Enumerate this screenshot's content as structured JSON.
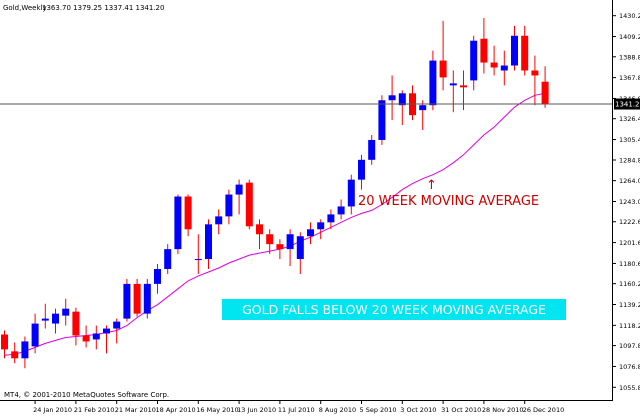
{
  "header": {
    "symbol": "Gold,Weekly",
    "ohlc": "1363.70 1379.25 1337.41 1341.20"
  },
  "footer": {
    "copyright": "MT4, © 2001-2010 MetaQuotes Software Corp."
  },
  "current_price": {
    "value": 1341.2,
    "label": "1341.20"
  },
  "annotations": {
    "ma_label": "20 WEEK MOVING AVERAGE",
    "arrow_glyph": "↑",
    "banner": "GOLD FALLS BELOW 20 WEEK MOVING AVERAGE"
  },
  "colors": {
    "bull": "#0000ff",
    "bear": "#ff0000",
    "wick": "#ff0000",
    "ma": "#e000e0",
    "banner_bg": "#00e5f0",
    "banner_text": "#ffffff",
    "annotation_text": "#cc0000",
    "axis": "#000000",
    "price_line": "#555555",
    "price_tag_bg": "#000000",
    "price_tag_text": "#ffffff"
  },
  "chart_data": {
    "type": "candlestick",
    "title": "Gold,Weekly",
    "ylim": [
      1044,
      1444
    ],
    "y_ticks": [
      1055.8,
      1076.8,
      1097.8,
      1118.2,
      1139.2,
      1160.2,
      1180.6,
      1201.6,
      1222.6,
      1243.0,
      1264.0,
      1284.8,
      1305.4,
      1326.4,
      1346.8,
      1367.8,
      1388.8,
      1409.2,
      1430.2
    ],
    "y_tick_labels": [
      "1055.80",
      "1076.80",
      "1097.80",
      "1118.20",
      "1139.20",
      "1160.20",
      "1180.60",
      "1201.60",
      "1222.60",
      "1243.00",
      "1264.00",
      "1284.80",
      "1305.40",
      "1326.40",
      "1346.80",
      "1367.80",
      "1388.80",
      "1409.20",
      "1430.20"
    ],
    "x_tick_labels": [
      "24 Jan 2010",
      "21 Feb 2010",
      "21 Mar 2010",
      "18 Apr 2010",
      "16 May 2010",
      "13 Jun 2010",
      "11 Jul 2010",
      "8 Aug 2010",
      "5 Sep 2010",
      "3 Oct 2010",
      "31 Oct 2010",
      "28 Nov 2010",
      "26 Dec 2010"
    ],
    "x_tick_bar_index": [
      3,
      7,
      11,
      15,
      19,
      23,
      27,
      31,
      35,
      39,
      43,
      47,
      51
    ],
    "candles": [
      {
        "o": 1109,
        "h": 1113,
        "l": 1085,
        "c": 1094
      },
      {
        "o": 1092,
        "h": 1101,
        "l": 1080,
        "c": 1085
      },
      {
        "o": 1085,
        "h": 1107,
        "l": 1075,
        "c": 1102
      },
      {
        "o": 1097,
        "h": 1130,
        "l": 1090,
        "c": 1120
      },
      {
        "o": 1123,
        "h": 1140,
        "l": 1115,
        "c": 1125
      },
      {
        "o": 1120,
        "h": 1135,
        "l": 1110,
        "c": 1130
      },
      {
        "o": 1128,
        "h": 1145,
        "l": 1118,
        "c": 1135
      },
      {
        "o": 1132,
        "h": 1136,
        "l": 1098,
        "c": 1108
      },
      {
        "o": 1108,
        "h": 1118,
        "l": 1096,
        "c": 1102
      },
      {
        "o": 1104,
        "h": 1118,
        "l": 1094,
        "c": 1110
      },
      {
        "o": 1110,
        "h": 1118,
        "l": 1090,
        "c": 1115
      },
      {
        "o": 1115,
        "h": 1125,
        "l": 1100,
        "c": 1122
      },
      {
        "o": 1125,
        "h": 1165,
        "l": 1122,
        "c": 1160
      },
      {
        "o": 1160,
        "h": 1165,
        "l": 1127,
        "c": 1130
      },
      {
        "o": 1130,
        "h": 1165,
        "l": 1125,
        "c": 1160
      },
      {
        "o": 1160,
        "h": 1180,
        "l": 1150,
        "c": 1175
      },
      {
        "o": 1175,
        "h": 1200,
        "l": 1170,
        "c": 1195
      },
      {
        "o": 1195,
        "h": 1250,
        "l": 1190,
        "c": 1248
      },
      {
        "o": 1248,
        "h": 1250,
        "l": 1208,
        "c": 1215
      },
      {
        "o": 1185,
        "h": 1210,
        "l": 1170,
        "c": 1185
      },
      {
        "o": 1185,
        "h": 1225,
        "l": 1175,
        "c": 1220
      },
      {
        "o": 1220,
        "h": 1235,
        "l": 1210,
        "c": 1228
      },
      {
        "o": 1228,
        "h": 1255,
        "l": 1220,
        "c": 1250
      },
      {
        "o": 1250,
        "h": 1265,
        "l": 1230,
        "c": 1260
      },
      {
        "o": 1262,
        "h": 1265,
        "l": 1215,
        "c": 1218
      },
      {
        "o": 1220,
        "h": 1225,
        "l": 1195,
        "c": 1210
      },
      {
        "o": 1210,
        "h": 1215,
        "l": 1190,
        "c": 1200
      },
      {
        "o": 1200,
        "h": 1205,
        "l": 1185,
        "c": 1195
      },
      {
        "o": 1195,
        "h": 1215,
        "l": 1178,
        "c": 1210
      },
      {
        "o": 1185,
        "h": 1212,
        "l": 1170,
        "c": 1208
      },
      {
        "o": 1208,
        "h": 1222,
        "l": 1200,
        "c": 1215
      },
      {
        "o": 1215,
        "h": 1225,
        "l": 1205,
        "c": 1222
      },
      {
        "o": 1222,
        "h": 1235,
        "l": 1215,
        "c": 1230
      },
      {
        "o": 1230,
        "h": 1245,
        "l": 1225,
        "c": 1238
      },
      {
        "o": 1238,
        "h": 1270,
        "l": 1230,
        "c": 1265
      },
      {
        "o": 1265,
        "h": 1290,
        "l": 1255,
        "c": 1285
      },
      {
        "o": 1285,
        "h": 1310,
        "l": 1280,
        "c": 1305
      },
      {
        "o": 1305,
        "h": 1350,
        "l": 1300,
        "c": 1345
      },
      {
        "o": 1345,
        "h": 1370,
        "l": 1325,
        "c": 1350
      },
      {
        "o": 1340,
        "h": 1355,
        "l": 1320,
        "c": 1352
      },
      {
        "o": 1352,
        "h": 1360,
        "l": 1325,
        "c": 1330
      },
      {
        "o": 1335,
        "h": 1345,
        "l": 1315,
        "c": 1340
      },
      {
        "o": 1340,
        "h": 1395,
        "l": 1335,
        "c": 1385
      },
      {
        "o": 1385,
        "h": 1425,
        "l": 1355,
        "c": 1368
      },
      {
        "o": 1360,
        "h": 1375,
        "l": 1333,
        "c": 1362
      },
      {
        "o": 1360,
        "h": 1375,
        "l": 1335,
        "c": 1358
      },
      {
        "o": 1365,
        "h": 1410,
        "l": 1355,
        "c": 1405
      },
      {
        "o": 1407,
        "h": 1428,
        "l": 1372,
        "c": 1383
      },
      {
        "o": 1383,
        "h": 1400,
        "l": 1370,
        "c": 1378
      },
      {
        "o": 1375,
        "h": 1395,
        "l": 1360,
        "c": 1380
      },
      {
        "o": 1380,
        "h": 1420,
        "l": 1375,
        "c": 1410
      },
      {
        "o": 1410,
        "h": 1420,
        "l": 1370,
        "c": 1375
      },
      {
        "o": 1375,
        "h": 1390,
        "l": 1340,
        "c": 1370
      },
      {
        "o": 1363.7,
        "h": 1379.25,
        "l": 1337.41,
        "c": 1341.2
      }
    ],
    "ma_period": 20,
    "ma_values": [
      1088,
      1089,
      1092,
      1096,
      1100,
      1103,
      1106,
      1107,
      1108,
      1109,
      1111,
      1113,
      1118,
      1126,
      1133,
      1139,
      1147,
      1155,
      1163,
      1168,
      1172,
      1176,
      1181,
      1185,
      1189,
      1191,
      1193,
      1195,
      1198,
      1203,
      1207,
      1212,
      1217,
      1222,
      1227,
      1231,
      1234,
      1240,
      1247,
      1255,
      1261,
      1266,
      1270,
      1275,
      1282,
      1290,
      1300,
      1310,
      1318,
      1328,
      1338,
      1345,
      1350,
      1352
    ]
  }
}
